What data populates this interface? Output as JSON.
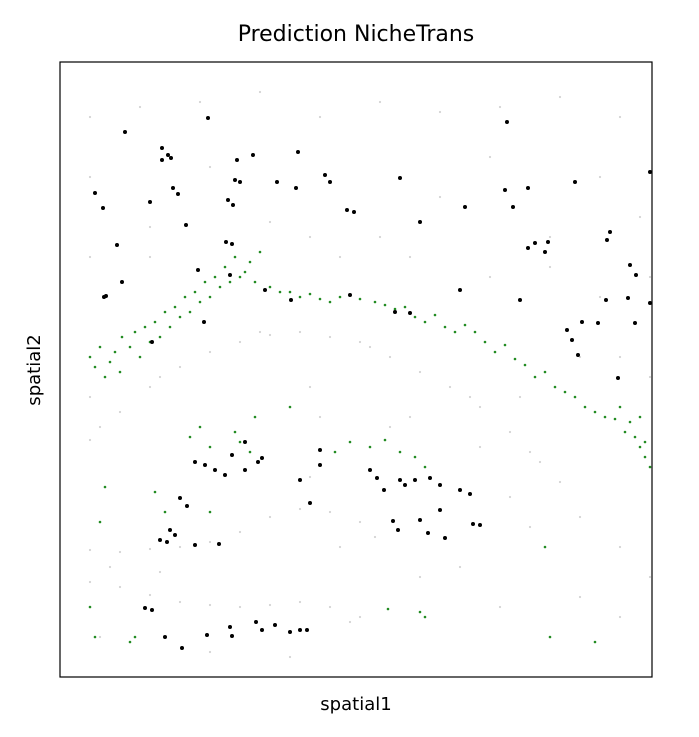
{
  "chart_data": {
    "type": "scatter",
    "title": "Prediction NicheTrans",
    "xlabel": "spatial1",
    "ylabel": "spatial2",
    "xlim": [
      0,
      592
    ],
    "ylim": [
      0,
      615
    ],
    "series": [
      {
        "color": "#d3d3d3",
        "radius": 1.1,
        "x": [
          30,
          60,
          90,
          120,
          150,
          180,
          210,
          240,
          270,
          300,
          330,
          360,
          390,
          420,
          450,
          480,
          500,
          40,
          100,
          200,
          310,
          410,
          470,
          30,
          60,
          90,
          120,
          150,
          180,
          210,
          240,
          270,
          300,
          315,
          30,
          60,
          90,
          120,
          150,
          180,
          210,
          240,
          270,
          290,
          300,
          280,
          50,
          100,
          30,
          80,
          140,
          200,
          260,
          320,
          380,
          440,
          500,
          560,
          30,
          90,
          150,
          210,
          250,
          320,
          380,
          430,
          490,
          540,
          580,
          30,
          90,
          280,
          350,
          430,
          490,
          540,
          590,
          520,
          560,
          590,
          30,
          250,
          350,
          420,
          260,
          250,
          330,
          450,
          470,
          520,
          560,
          590,
          520,
          440,
          400,
          360,
          40,
          150,
          230,
          560,
          460
        ],
        "y": [
          237,
          265,
          290,
          310,
          325,
          335,
          342,
          345,
          340,
          335,
          320,
          305,
          290,
          270,
          245,
          215,
          195,
          250,
          300,
          345,
          330,
          280,
          225,
          127,
          125,
          128,
          130,
          135,
          145,
          160,
          168,
          165,
          155,
          140,
          95,
          90,
          82,
          75,
          72,
          70,
          72,
          75,
          70,
          55,
          60,
          130,
          110,
          105,
          560,
          570,
          575,
          585,
          560,
          575,
          565,
          570,
          580,
          560,
          500,
          450,
          510,
          455,
          440,
          440,
          480,
          520,
          440,
          500,
          460,
          420,
          420,
          420,
          420,
          400,
          410,
          380,
          400,
          320,
          320,
          300,
          280,
          290,
          260,
          230,
          260,
          200,
          250,
          180,
          150,
          160,
          130,
          100,
          80,
          70,
          110,
          100,
          40,
          25,
          20,
          60,
          280
        ]
      },
      {
        "color": "#228b22",
        "radius": 1.3,
        "x": [
          30,
          35,
          40,
          45,
          50,
          55,
          60,
          62,
          70,
          75,
          80,
          85,
          90,
          95,
          100,
          105,
          110,
          115,
          120,
          125,
          130,
          135,
          140,
          145,
          150,
          155,
          160,
          165,
          170,
          175,
          180,
          185,
          190,
          195,
          200,
          210,
          220,
          230,
          240,
          250,
          260,
          270,
          280,
          300,
          315,
          325,
          335,
          345,
          355,
          365,
          375,
          385,
          395,
          405,
          415,
          425,
          435,
          445,
          455,
          465,
          475,
          485,
          495,
          505,
          515,
          525,
          535,
          545,
          555,
          565,
          575,
          580,
          585,
          590,
          570,
          580,
          585,
          560,
          130,
          140,
          150,
          175,
          180,
          190,
          195,
          230,
          95,
          45,
          105,
          150,
          40,
          275,
          290,
          310,
          325,
          340,
          355,
          365,
          30,
          35,
          70,
          75,
          328,
          360,
          365,
          485,
          490,
          535
        ],
        "y": [
          320,
          310,
          330,
          300,
          315,
          325,
          305,
          340,
          330,
          345,
          320,
          350,
          335,
          355,
          340,
          365,
          350,
          370,
          360,
          380,
          365,
          385,
          375,
          395,
          380,
          400,
          390,
          410,
          395,
          420,
          400,
          405,
          415,
          395,
          425,
          390,
          385,
          385,
          380,
          383,
          378,
          375,
          380,
          378,
          375,
          372,
          368,
          370,
          360,
          355,
          362,
          350,
          345,
          352,
          345,
          335,
          325,
          332,
          318,
          312,
          300,
          305,
          290,
          285,
          280,
          270,
          265,
          260,
          258,
          245,
          240,
          230,
          220,
          210,
          255,
          260,
          235,
          270,
          240,
          250,
          230,
          245,
          235,
          225,
          260,
          270,
          185,
          190,
          165,
          165,
          155,
          225,
          235,
          230,
          237,
          225,
          220,
          210,
          70,
          40,
          35,
          40,
          68,
          65,
          60,
          130,
          40,
          35
        ]
      },
      {
        "color": "#000000",
        "radius": 2,
        "x": [
          65,
          102,
          108,
          102,
          111,
          148,
          177,
          193,
          238,
          175,
          180,
          217,
          236,
          265,
          270,
          340,
          447,
          515,
          590,
          35,
          43,
          113,
          118,
          90,
          168,
          173,
          126,
          287,
          294,
          360,
          405,
          445,
          453,
          468,
          57,
          166,
          172,
          138,
          170,
          205,
          231,
          290,
          335,
          350,
          400,
          460,
          468,
          475,
          485,
          488,
          550,
          547,
          570,
          576,
          546,
          568,
          590,
          507,
          512,
          522,
          538,
          575,
          518,
          558,
          44,
          46,
          62,
          92,
          144,
          135,
          145,
          155,
          165,
          172,
          185,
          198,
          185,
          202,
          260,
          260,
          240,
          120,
          127,
          110,
          115,
          100,
          107,
          135,
          159,
          250,
          310,
          317,
          324,
          340,
          345,
          355,
          370,
          380,
          400,
          410,
          380,
          360,
          368,
          385,
          333,
          338,
          413,
          420,
          85,
          92,
          105,
          122,
          147,
          170,
          172,
          196,
          202,
          215,
          230,
          240,
          247
        ],
        "y": [
          545,
          529,
          522,
          517,
          519,
          559,
          517,
          522,
          525,
          497,
          495,
          495,
          489,
          502,
          495,
          499,
          555,
          495,
          505,
          484,
          469,
          489,
          483,
          475,
          477,
          472,
          452,
          467,
          465,
          455,
          470,
          487,
          470,
          489,
          432,
          435,
          433,
          407,
          402,
          387,
          377,
          382,
          365,
          364,
          387,
          377,
          429,
          434,
          425,
          435,
          445,
          437,
          412,
          402,
          377,
          379,
          374,
          347,
          337,
          355,
          354,
          354,
          322,
          299,
          380,
          381,
          395,
          335,
          355,
          215,
          212,
          207,
          202,
          222,
          207,
          215,
          235,
          219,
          227,
          212,
          197,
          179,
          171,
          147,
          142,
          137,
          135,
          132,
          133,
          174,
          207,
          199,
          187,
          197,
          192,
          197,
          199,
          192,
          187,
          183,
          167,
          157,
          144,
          139,
          156,
          147,
          153,
          152,
          69,
          67,
          40,
          29,
          42,
          50,
          41,
          55,
          47,
          52,
          45,
          47,
          47
        ]
      }
    ]
  }
}
